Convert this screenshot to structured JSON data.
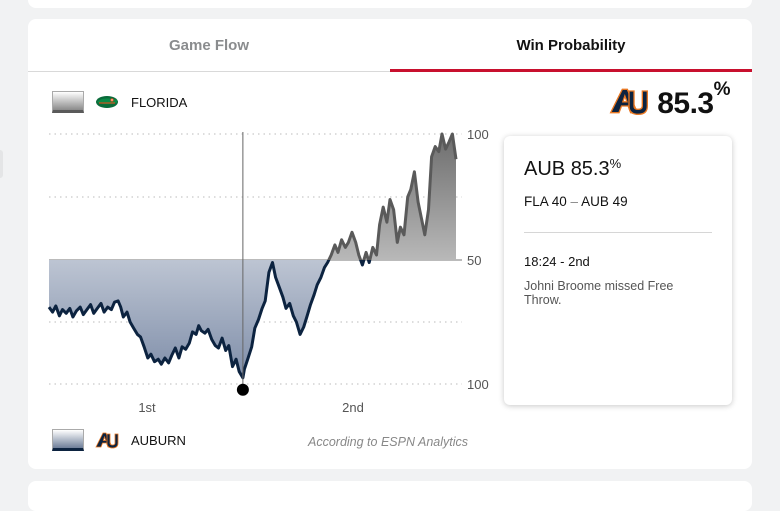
{
  "tabs": [
    {
      "label": "Game Flow",
      "active": false
    },
    {
      "label": "Win Probability",
      "active": true
    }
  ],
  "teams": {
    "top": {
      "name": "FLORIDA",
      "abbr": "FLA",
      "score": 40,
      "color": "#5a5a5a",
      "logo_icon": "florida-gator-logo"
    },
    "bottom": {
      "name": "AUBURN",
      "abbr": "AUB",
      "score": 49,
      "color": "#0c2340",
      "logo_icon": "auburn-au-logo"
    }
  },
  "headline": {
    "value": "85.3",
    "unit": "%"
  },
  "info_card": {
    "title_team": "AUB",
    "title_value": "85.3",
    "title_unit": "%",
    "score_left": "FLA 40",
    "score_sep": "–",
    "score_right": "AUB 49",
    "time": "18:24 - 2nd",
    "play": "Johni Broome missed Free Throw."
  },
  "source": "According to ESPN Analytics",
  "colors": {
    "accent": "#c8102e",
    "auburn": "#0c2340",
    "florida": "#5a5a5a",
    "auburn_orange": "#e87722"
  },
  "chart_data": {
    "type": "area",
    "x_ticks": [
      "1st",
      "2nd"
    ],
    "y_ticks": [
      "100",
      "50",
      "100"
    ],
    "ylim": [
      -100,
      100
    ],
    "series": [
      {
        "team": "FLA",
        "points": [
          [
            0,
            -38
          ],
          [
            0.7,
            -42
          ],
          [
            1.3,
            -37
          ],
          [
            2,
            -45
          ],
          [
            2.6,
            -40
          ],
          [
            3.3,
            -43
          ],
          [
            4,
            -39
          ],
          [
            4.6,
            -46
          ],
          [
            5.3,
            -41
          ],
          [
            6,
            -38
          ],
          [
            6.6,
            -44
          ],
          [
            7.3,
            -40
          ],
          [
            8,
            -36
          ],
          [
            8.6,
            -43
          ],
          [
            9.3,
            -39
          ],
          [
            10,
            -35
          ],
          [
            10.6,
            -42
          ],
          [
            11.3,
            -38
          ],
          [
            12,
            -40
          ],
          [
            12.6,
            -34
          ],
          [
            13.3,
            -33
          ],
          [
            13.8,
            -38
          ],
          [
            14.3,
            -46
          ],
          [
            15,
            -42
          ],
          [
            15.6,
            -50
          ],
          [
            16.3,
            -55
          ],
          [
            17,
            -60
          ],
          [
            17.6,
            -62
          ],
          [
            18.3,
            -70
          ],
          [
            19,
            -79
          ],
          [
            19.6,
            -76
          ],
          [
            20.3,
            -82
          ],
          [
            21,
            -80
          ],
          [
            21.6,
            -84
          ],
          [
            22.3,
            -79
          ],
          [
            23,
            -83
          ],
          [
            23.6,
            -77
          ],
          [
            24.3,
            -71
          ],
          [
            25,
            -79
          ],
          [
            25.6,
            -70
          ],
          [
            26.3,
            -72
          ],
          [
            27,
            -67
          ],
          [
            27.6,
            -58
          ],
          [
            28.3,
            -60
          ],
          [
            28.8,
            -53
          ],
          [
            29.3,
            -57
          ],
          [
            30,
            -59
          ],
          [
            30.6,
            -56
          ],
          [
            31.3,
            -64
          ],
          [
            32,
            -69
          ],
          [
            32.6,
            -71
          ],
          [
            33.3,
            -63
          ],
          [
            34,
            -73
          ],
          [
            34.6,
            -69
          ],
          [
            35.3,
            -86
          ],
          [
            36,
            -80
          ],
          [
            36.6,
            -90
          ],
          [
            37.3,
            -95
          ],
          [
            37.6,
            -88
          ],
          [
            38.3,
            -79
          ],
          [
            39,
            -70
          ],
          [
            39.6,
            -55
          ],
          [
            40.3,
            -48
          ],
          [
            41,
            -39
          ],
          [
            41.6,
            -33
          ],
          [
            42.3,
            -10
          ],
          [
            43,
            -2
          ],
          [
            43.6,
            -14
          ],
          [
            44.3,
            -22
          ],
          [
            45,
            -30
          ],
          [
            45.6,
            -39
          ],
          [
            46.3,
            -35
          ],
          [
            47,
            -45
          ],
          [
            47.6,
            -50
          ],
          [
            48.3,
            -60
          ],
          [
            49,
            -54
          ],
          [
            49.6,
            -46
          ],
          [
            50.3,
            -36
          ],
          [
            51,
            -28
          ],
          [
            51.6,
            -20
          ],
          [
            52.3,
            -14
          ],
          [
            53,
            -6
          ],
          [
            53.6,
            -2
          ],
          [
            54.3,
            4
          ],
          [
            55,
            12
          ],
          [
            55.6,
            6
          ],
          [
            56.3,
            16
          ],
          [
            57,
            10
          ],
          [
            57.6,
            14
          ],
          [
            58.3,
            22
          ],
          [
            59,
            14
          ],
          [
            59.6,
            4
          ],
          [
            60.3,
            -4
          ],
          [
            61,
            6
          ],
          [
            61.6,
            -2
          ],
          [
            62.3,
            10
          ],
          [
            63,
            4
          ],
          [
            63.6,
            28
          ],
          [
            64.3,
            42
          ],
          [
            65,
            30
          ],
          [
            65.6,
            48
          ],
          [
            66.3,
            40
          ],
          [
            67,
            14
          ],
          [
            67.6,
            26
          ],
          [
            68.3,
            20
          ],
          [
            69,
            50
          ],
          [
            69.6,
            56
          ],
          [
            70.3,
            70
          ],
          [
            71,
            46
          ],
          [
            71.6,
            34
          ],
          [
            72.3,
            20
          ],
          [
            73,
            40
          ],
          [
            73.6,
            82
          ],
          [
            74.3,
            90
          ],
          [
            75,
            86
          ],
          [
            75.6,
            100
          ],
          [
            76.3,
            88
          ],
          [
            77,
            94
          ],
          [
            77.6,
            100
          ],
          [
            78.3,
            80
          ]
        ]
      }
    ],
    "current_marker": {
      "x": 37.3,
      "y": -95
    },
    "vertical_line_x": 37.3,
    "x_domain": [
      0,
      78.3
    ]
  }
}
